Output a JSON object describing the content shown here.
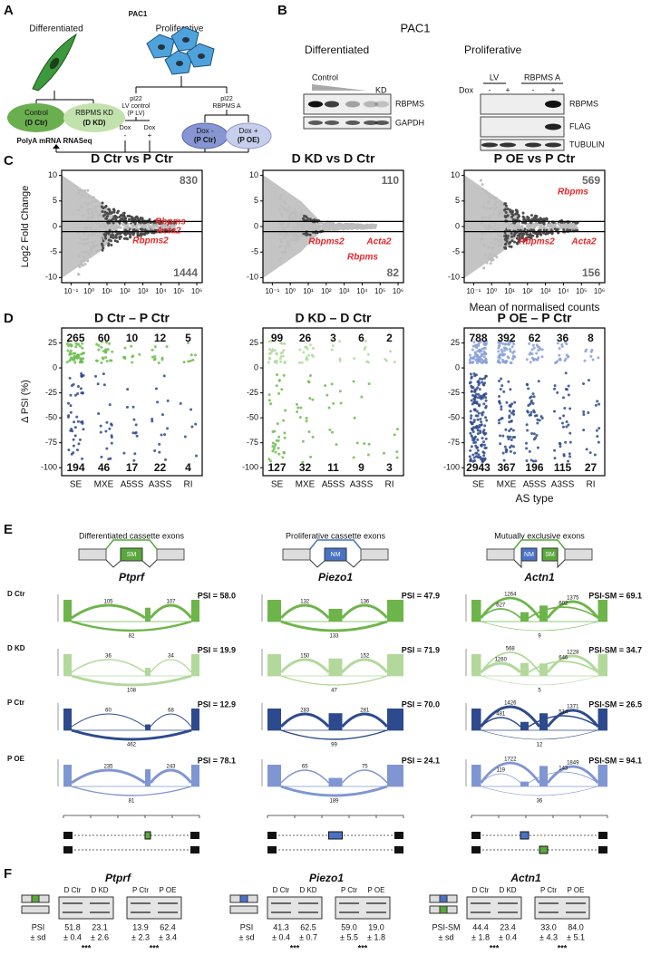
{
  "panel_labels": {
    "a": "A",
    "b": "B",
    "c": "C",
    "d": "D",
    "e": "E",
    "f": "F"
  },
  "panel_a": {
    "cell_line": "PAC1",
    "differentiated": "Differentiated",
    "proliferative": "Proliferative",
    "d_ctr_name": "Control",
    "d_ctr_code": "(D Ctr)",
    "d_kd_name": "RBPMS KD",
    "d_kd_code": "(D KD)",
    "lv_vector": "pI22",
    "lv_name": "LV control",
    "lv_code": "(P LV)",
    "oe_vector": "pI22",
    "oe_name": "RBPMS A",
    "lv_dox": [
      "Dox",
      "Dox"
    ],
    "lv_dox_states": [
      "-",
      "+"
    ],
    "p_ctr_name": "Dox -",
    "p_ctr_code": "(P Ctr)",
    "p_oe_name": "Dox +",
    "p_oe_code": "(P OE)",
    "assay": "PolyA mRNA RNASeq"
  },
  "panel_b": {
    "cell_line": "PAC1",
    "differentiated": "Differentiated",
    "proliferative": "Proliferative",
    "control": "Control",
    "kd": "KD",
    "d_blots": [
      "RBPMS",
      "GAPDH"
    ],
    "lv": "LV",
    "rbpms_a": "RBPMS A",
    "dox": "Dox",
    "dox_states": [
      "-",
      "+",
      "-",
      "+"
    ],
    "p_blots": [
      "RBPMS",
      "FLAG",
      "TUBULIN"
    ]
  },
  "panel_c": {
    "type": "scatter",
    "y_label": "Log2 Fold Change",
    "x_label": "Mean of normalised counts",
    "log_x": true,
    "xlim": [
      0.03,
      2000000
    ],
    "ylim": [
      -11,
      11
    ],
    "yticks": [
      -10,
      -5,
      0,
      5,
      10
    ],
    "xticks": [
      {
        "value": 0.1,
        "label": "10⁻¹"
      },
      {
        "value": 1,
        "label": "10⁰"
      },
      {
        "value": 10,
        "label": "10¹"
      },
      {
        "value": 100,
        "label": "10²"
      },
      {
        "value": 1000,
        "label": "10³"
      },
      {
        "value": 10000,
        "label": "10⁴"
      },
      {
        "value": 100000,
        "label": "10⁵"
      },
      {
        "value": 1000000,
        "label": "10⁶"
      }
    ],
    "cutoffs": [
      -1,
      1
    ],
    "highlight_color": "#e8262a",
    "plots": [
      {
        "title": "D Ctr vs P Ctr",
        "up": 830,
        "down": 1444,
        "genes": [
          "Rbpms",
          "Acta2",
          "Rbpms2"
        ]
      },
      {
        "title": "D KD vs D Ctr",
        "up": 110,
        "down": 82,
        "genes": [
          "Rbpms2",
          "Acta2",
          "Rbpms"
        ]
      },
      {
        "title": "P OE vs P Ctr",
        "up": 569,
        "down": 156,
        "genes": [
          "Rbpms",
          "Rbpms2",
          "Acta2"
        ]
      }
    ]
  },
  "panel_d": {
    "type": "strip",
    "y_label": "Δ PSI (%)",
    "x_label": "AS type",
    "categories": [
      "SE",
      "MXE",
      "A5SS",
      "A3SS",
      "RI"
    ],
    "ylim": [
      -108,
      40
    ],
    "yticks": [
      -100,
      -75,
      -50,
      -25,
      0,
      25
    ],
    "plots": [
      {
        "title": "D Ctr – P Ctr",
        "up": [
          265,
          60,
          10,
          12,
          5
        ],
        "down": [
          194,
          46,
          17,
          22,
          4
        ],
        "up_color": "#6cbd4f",
        "down_color": "#2d4a8c"
      },
      {
        "title": "D KD – D Ctr",
        "up": [
          99,
          26,
          3,
          6,
          2
        ],
        "down": [
          127,
          32,
          11,
          9,
          3
        ],
        "up_color": "#b2da9c",
        "down_color": "#6cbd4f"
      },
      {
        "title": "P OE – P Ctr",
        "up": [
          788,
          392,
          62,
          36,
          8
        ],
        "down": [
          2943,
          367,
          196,
          115,
          27
        ],
        "up_color": "#8aa0d8",
        "down_color": "#2d4a8c"
      }
    ]
  },
  "panel_e": {
    "headings": [
      "Differentiated cassette exons",
      "Proliferative cassette exons",
      "Mutually exclusive exons"
    ],
    "conditions": [
      "D Ctr",
      "D KD",
      "P Ctr",
      "P OE"
    ],
    "condition_colors": [
      "#6db54a",
      "#b2d99b",
      "#2c4a8d",
      "#8096d2"
    ],
    "genes": [
      {
        "name": "Ptprf",
        "exons": [
          {
            "label": "SM",
            "color": "#5aa83c"
          }
        ],
        "psi": [
          "PSI = 58.0",
          "PSI = 19.9",
          "PSI = 12.9",
          "PSI = 78.1"
        ],
        "junctions": [
          [
            105,
            107,
            82
          ],
          [
            36,
            34,
            108
          ],
          [
            60,
            68,
            462
          ],
          [
            235,
            243,
            81
          ]
        ]
      },
      {
        "name": "Piezo1",
        "exons": [
          {
            "label": "NM",
            "color": "#4a72c4"
          }
        ],
        "psi": [
          "PSI = 47.9",
          "PSI = 71.9",
          "PSI = 70.0",
          "PSI = 24.1"
        ],
        "junctions": [
          [
            132,
            136,
            133
          ],
          [
            150,
            152,
            47
          ],
          [
            283,
            281,
            99
          ],
          [
            65,
            75,
            189
          ]
        ]
      },
      {
        "name": "Actn1",
        "exons": [
          {
            "label": "NM",
            "color": "#4a72c4"
          },
          {
            "label": "SM",
            "color": "#5aa83c"
          }
        ],
        "psi": [
          "PSI-SM = 69.1",
          "PSI-SM = 34.7",
          "PSI-SM = 26.5",
          "PSI-SM = 94.1"
        ],
        "junctions": [
          [
            1264,
            1375,
            627,
            602,
            9
          ],
          [
            568,
            1228,
            1260,
            646,
            5
          ],
          [
            1426,
            1371,
            481,
            514,
            12
          ],
          [
            1722,
            1849,
            119,
            143,
            36
          ]
        ]
      }
    ]
  },
  "panel_f": {
    "genes": [
      {
        "name": "Ptprf",
        "stat_label": "PSI",
        "sd_label": "± sd",
        "groups": [
          {
            "lanes": [
              "D Ctr",
              "D KD"
            ],
            "values": [
              "51.8",
              "23.1"
            ],
            "sd": [
              "± 0.4",
              "± 2.6"
            ],
            "significance": "***"
          },
          {
            "lanes": [
              "P Ctr",
              "P OE"
            ],
            "values": [
              "13.9",
              "62.4"
            ],
            "sd": [
              "± 2.3",
              "± 3.4"
            ],
            "significance": "***"
          }
        ]
      },
      {
        "name": "Piezo1",
        "stat_label": "PSI",
        "sd_label": "± sd",
        "groups": [
          {
            "lanes": [
              "D Ctr",
              "D KD"
            ],
            "values": [
              "41.3",
              "62.5"
            ],
            "sd": [
              "± 0.4",
              "± 0.7"
            ],
            "significance": "***"
          },
          {
            "lanes": [
              "P Ctr",
              "P OE"
            ],
            "values": [
              "59.0",
              "19.0"
            ],
            "sd": [
              "± 5.5",
              "± 1.8"
            ],
            "significance": "***"
          }
        ]
      },
      {
        "name": "Actn1",
        "stat_label": "PSI-SM",
        "sd_label": "± sd",
        "groups": [
          {
            "lanes": [
              "D Ctr",
              "D KD"
            ],
            "values": [
              "44.4",
              "23.4"
            ],
            "sd": [
              "± 1.8",
              "± 0.4"
            ],
            "significance": "***"
          },
          {
            "lanes": [
              "P Ctr",
              "P OE"
            ],
            "values": [
              "33.0",
              "84.0"
            ],
            "sd": [
              "± 4.3",
              "± 5.1"
            ],
            "significance": "***"
          }
        ]
      }
    ]
  }
}
